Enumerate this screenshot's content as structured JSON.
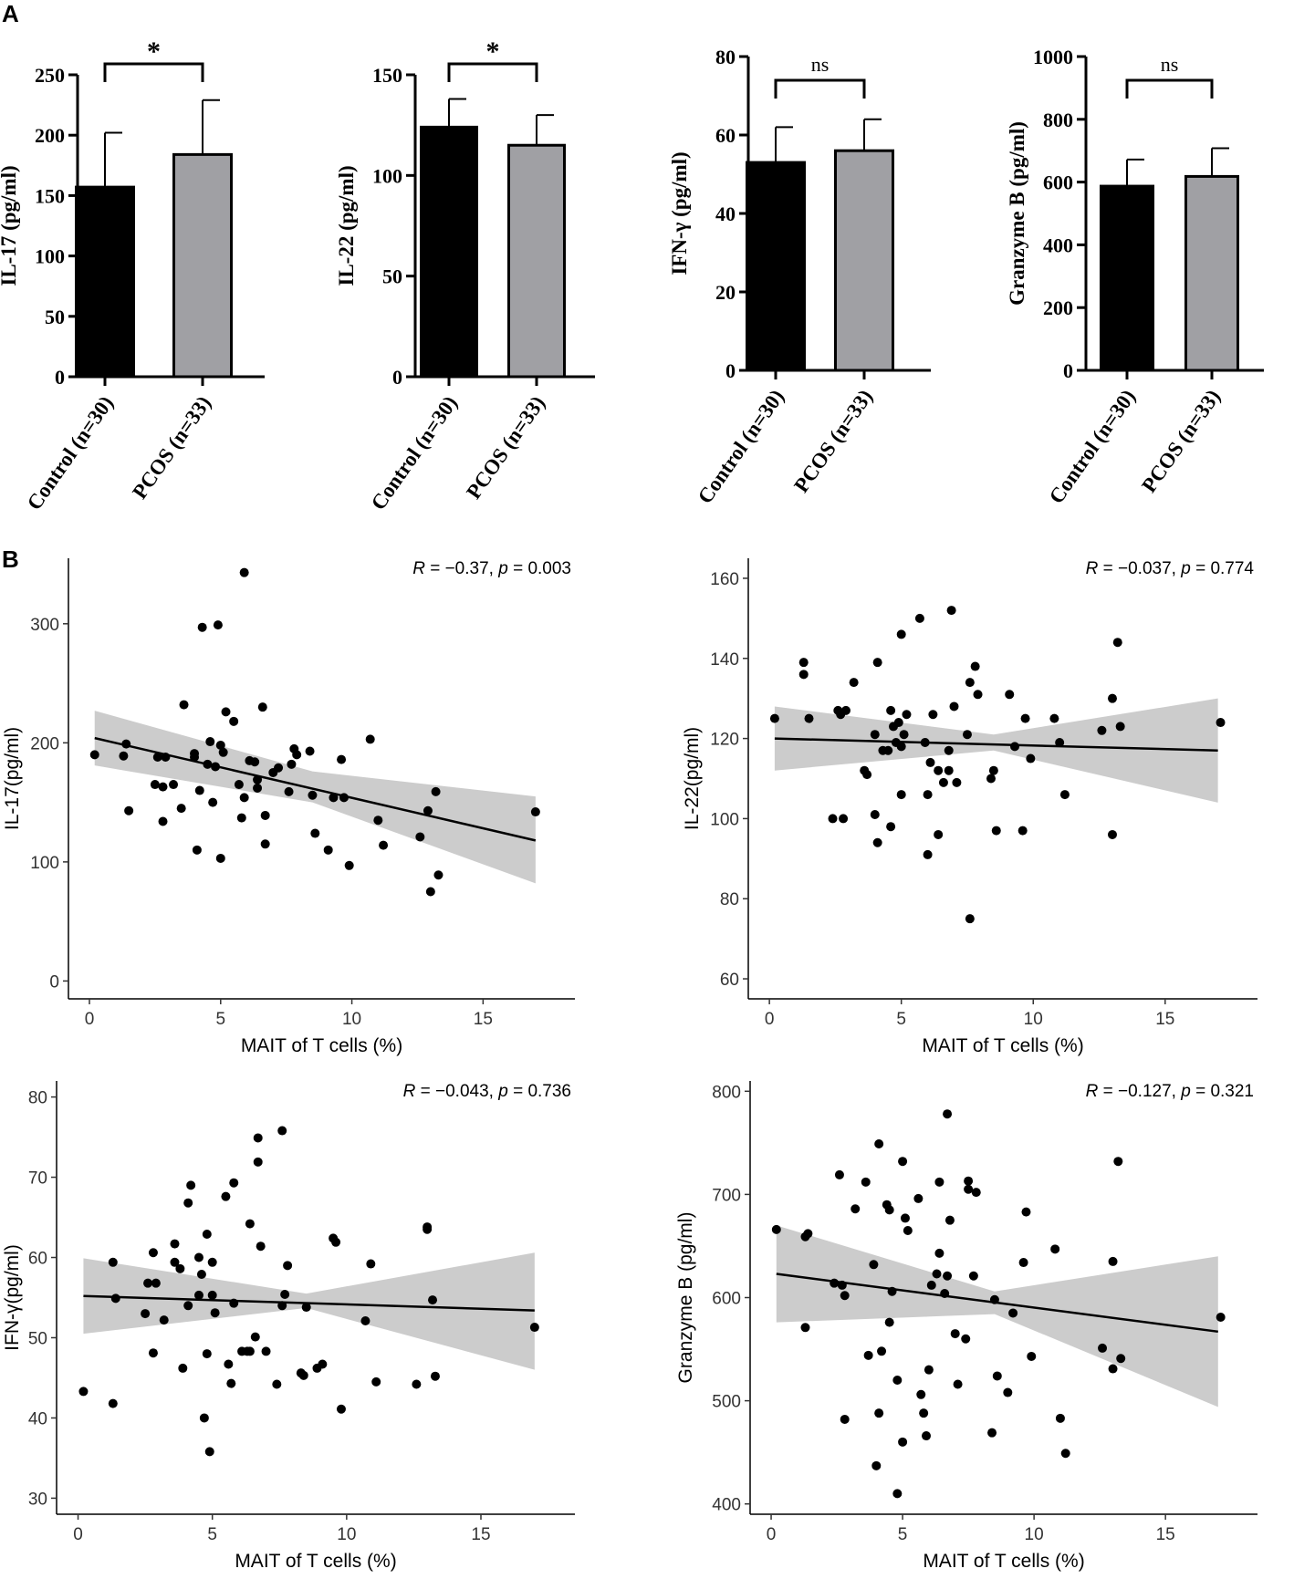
{
  "panels": {
    "a": "A",
    "b": "B"
  },
  "colors": {
    "control": "#000000",
    "pcos": "#a0a0a4",
    "band": "#cccccc",
    "point": "#000000"
  },
  "chart_data": [
    {
      "type": "bar",
      "panel": "A",
      "ylabel": "IL-17 (pg/ml)",
      "categories": [
        "Control (n=30)",
        "PCOS (n=33)"
      ],
      "values": [
        157,
        184
      ],
      "errors": [
        45,
        45
      ],
      "ylim": [
        0,
        250
      ],
      "yticks": [
        "0",
        "50",
        "100",
        "150",
        "200",
        "250"
      ],
      "significance": "*"
    },
    {
      "type": "bar",
      "panel": "A",
      "ylabel": "IL-22 (pg/ml)",
      "categories": [
        "Control (n=30)",
        "PCOS (n=33)"
      ],
      "values": [
        124,
        115
      ],
      "errors": [
        14,
        15
      ],
      "ylim": [
        0,
        150
      ],
      "yticks": [
        "0",
        "50",
        "100",
        "150"
      ],
      "significance": "*"
    },
    {
      "type": "bar",
      "panel": "A",
      "ylabel": "IFN-γ (pg/ml)",
      "categories": [
        "Control (n=30)",
        "PCOS (n=33)"
      ],
      "values": [
        53,
        56
      ],
      "errors": [
        9,
        8
      ],
      "ylim": [
        0,
        80
      ],
      "yticks": [
        "0",
        "20",
        "40",
        "60",
        "80"
      ],
      "significance": "ns"
    },
    {
      "type": "bar",
      "panel": "A",
      "ylabel": "Granzyme B (pg/ml)",
      "categories": [
        "Control (n=30)",
        "PCOS (n=33)"
      ],
      "values": [
        587,
        618
      ],
      "errors": [
        85,
        90
      ],
      "ylim": [
        0,
        1000
      ],
      "yticks": [
        "0",
        "200",
        "400",
        "600",
        "800",
        "1000"
      ],
      "significance": "ns"
    },
    {
      "type": "scatter",
      "panel": "B",
      "xlabel": "MAIT of T cells (%)",
      "ylabel": "IL-17(pg/ml)",
      "r_text": "R",
      "stat_text": " = −0.37, ",
      "p_text": "p",
      "pval_text": " = 0.003",
      "xlim": [
        -0.8,
        18.5
      ],
      "ylim": [
        -15,
        355
      ],
      "xticks": [
        "0",
        "5",
        "10",
        "15"
      ],
      "yticks": [
        "0",
        "100",
        "200",
        "300"
      ],
      "fit": {
        "x": [
          0.2,
          17.0
        ],
        "y": [
          204,
          118
        ]
      },
      "band": {
        "x": [
          0.2,
          8.5,
          17.0
        ],
        "upper": [
          227,
          176,
          155
        ],
        "lower": [
          181,
          150,
          82
        ]
      },
      "points": [
        [
          0.2,
          190
        ],
        [
          1.3,
          189
        ],
        [
          1.4,
          199
        ],
        [
          1.5,
          143
        ],
        [
          2.5,
          165
        ],
        [
          2.6,
          188
        ],
        [
          2.8,
          163
        ],
        [
          2.8,
          134
        ],
        [
          2.9,
          188
        ],
        [
          3.2,
          165
        ],
        [
          3.5,
          145
        ],
        [
          3.6,
          232
        ],
        [
          4.0,
          188
        ],
        [
          4.0,
          191
        ],
        [
          4.1,
          110
        ],
        [
          4.2,
          160
        ],
        [
          4.3,
          297
        ],
        [
          4.5,
          182
        ],
        [
          4.6,
          201
        ],
        [
          4.7,
          150
        ],
        [
          4.8,
          180
        ],
        [
          4.9,
          299
        ],
        [
          5.0,
          103
        ],
        [
          5.0,
          198
        ],
        [
          5.1,
          192
        ],
        [
          5.2,
          226
        ],
        [
          5.5,
          218
        ],
        [
          5.7,
          165
        ],
        [
          5.8,
          137
        ],
        [
          5.9,
          343
        ],
        [
          5.9,
          154
        ],
        [
          6.1,
          185
        ],
        [
          6.3,
          184
        ],
        [
          6.4,
          162
        ],
        [
          6.4,
          169
        ],
        [
          6.6,
          230
        ],
        [
          6.7,
          139
        ],
        [
          6.7,
          115
        ],
        [
          7.0,
          175
        ],
        [
          7.2,
          179
        ],
        [
          7.6,
          159
        ],
        [
          7.7,
          182
        ],
        [
          7.8,
          195
        ],
        [
          7.9,
          190
        ],
        [
          8.4,
          193
        ],
        [
          8.5,
          156
        ],
        [
          8.6,
          124
        ],
        [
          9.1,
          110
        ],
        [
          9.3,
          154
        ],
        [
          9.6,
          186
        ],
        [
          9.7,
          154
        ],
        [
          9.9,
          97
        ],
        [
          10.7,
          203
        ],
        [
          11.0,
          135
        ],
        [
          11.2,
          114
        ],
        [
          12.6,
          121
        ],
        [
          12.9,
          143
        ],
        [
          13.0,
          75
        ],
        [
          13.2,
          159
        ],
        [
          13.3,
          89
        ],
        [
          17.0,
          142
        ]
      ]
    },
    {
      "type": "scatter",
      "panel": "B",
      "xlabel": "MAIT of T cells (%)",
      "ylabel": "IL-22(pg/ml)",
      "r_text": "R",
      "stat_text": " = −0.037, ",
      "p_text": "p",
      "pval_text": " = 0.774",
      "xlim": [
        -0.8,
        18.5
      ],
      "ylim": [
        55,
        165
      ],
      "xticks": [
        "0",
        "5",
        "10",
        "15"
      ],
      "yticks": [
        "60",
        "80",
        "100",
        "120",
        "140",
        "160"
      ],
      "fit": {
        "x": [
          0.2,
          17.0
        ],
        "y": [
          120,
          117
        ]
      },
      "band": {
        "x": [
          0.2,
          8.5,
          17.0
        ],
        "upper": [
          128,
          121,
          130
        ],
        "lower": [
          112,
          117,
          104
        ]
      },
      "points": [
        [
          0.2,
          125
        ],
        [
          1.3,
          139
        ],
        [
          1.3,
          136
        ],
        [
          1.5,
          125
        ],
        [
          2.4,
          100
        ],
        [
          2.6,
          127
        ],
        [
          2.7,
          126
        ],
        [
          2.8,
          100
        ],
        [
          2.9,
          127
        ],
        [
          3.2,
          134
        ],
        [
          3.6,
          112
        ],
        [
          3.7,
          111
        ],
        [
          4.0,
          101
        ],
        [
          4.0,
          121
        ],
        [
          4.1,
          139
        ],
        [
          4.1,
          94
        ],
        [
          4.3,
          117
        ],
        [
          4.5,
          117
        ],
        [
          4.6,
          127
        ],
        [
          4.6,
          98
        ],
        [
          4.7,
          123
        ],
        [
          4.8,
          119
        ],
        [
          4.9,
          124
        ],
        [
          5.0,
          106
        ],
        [
          5.0,
          118
        ],
        [
          5.0,
          146
        ],
        [
          5.1,
          121
        ],
        [
          5.2,
          126
        ],
        [
          5.7,
          150
        ],
        [
          5.9,
          119
        ],
        [
          6.0,
          106
        ],
        [
          6.0,
          91
        ],
        [
          6.1,
          114
        ],
        [
          6.2,
          126
        ],
        [
          6.4,
          96
        ],
        [
          6.4,
          112
        ],
        [
          6.6,
          109
        ],
        [
          6.8,
          117
        ],
        [
          6.8,
          112
        ],
        [
          6.9,
          152
        ],
        [
          7.0,
          128
        ],
        [
          7.1,
          109
        ],
        [
          7.5,
          121
        ],
        [
          7.6,
          134
        ],
        [
          7.6,
          75
        ],
        [
          7.8,
          138
        ],
        [
          7.9,
          131
        ],
        [
          8.4,
          110
        ],
        [
          8.5,
          112
        ],
        [
          8.6,
          97
        ],
        [
          9.1,
          131
        ],
        [
          9.3,
          118
        ],
        [
          9.6,
          97
        ],
        [
          9.7,
          125
        ],
        [
          9.9,
          115
        ],
        [
          10.8,
          125
        ],
        [
          11.0,
          119
        ],
        [
          11.2,
          106
        ],
        [
          12.6,
          122
        ],
        [
          13.0,
          130
        ],
        [
          13.0,
          96
        ],
        [
          13.2,
          144
        ],
        [
          13.3,
          123
        ],
        [
          17.1,
          124
        ]
      ]
    },
    {
      "type": "scatter",
      "panel": "B",
      "xlabel": "MAIT of T cells (%)",
      "ylabel": "IFN-γ(pg/ml)",
      "r_text": "R",
      "stat_text": " = −0.043, ",
      "p_text": "p",
      "pval_text": " = 0.736",
      "xlim": [
        -0.8,
        18.5
      ],
      "ylim": [
        28,
        82
      ],
      "xticks": [
        "0",
        "5",
        "10",
        "15"
      ],
      "yticks": [
        "30",
        "40",
        "50",
        "60",
        "70",
        "80"
      ],
      "fit": {
        "x": [
          0.2,
          17.0
        ],
        "y": [
          55.2,
          53.4
        ]
      },
      "band": {
        "x": [
          0.2,
          8.5,
          17.0
        ],
        "upper": [
          59.9,
          55.5,
          60.6
        ],
        "lower": [
          50.5,
          53.7,
          46.0
        ]
      },
      "points": [
        [
          0.2,
          43.3
        ],
        [
          1.3,
          59.4
        ],
        [
          1.3,
          41.8
        ],
        [
          1.4,
          54.9
        ],
        [
          2.5,
          53.0
        ],
        [
          2.6,
          56.8
        ],
        [
          2.8,
          60.6
        ],
        [
          2.8,
          48.1
        ],
        [
          2.9,
          56.8
        ],
        [
          3.2,
          52.2
        ],
        [
          3.6,
          61.7
        ],
        [
          3.6,
          59.4
        ],
        [
          3.8,
          58.6
        ],
        [
          3.9,
          46.2
        ],
        [
          4.1,
          54.0
        ],
        [
          4.1,
          66.8
        ],
        [
          4.2,
          69.0
        ],
        [
          4.5,
          60.0
        ],
        [
          4.5,
          55.3
        ],
        [
          4.6,
          57.9
        ],
        [
          4.7,
          40.0
        ],
        [
          4.8,
          62.9
        ],
        [
          4.8,
          48.0
        ],
        [
          4.9,
          35.8
        ],
        [
          5.0,
          55.3
        ],
        [
          5.0,
          59.4
        ],
        [
          5.1,
          53.1
        ],
        [
          5.5,
          67.6
        ],
        [
          5.6,
          46.7
        ],
        [
          5.7,
          44.3
        ],
        [
          5.8,
          69.3
        ],
        [
          5.8,
          54.3
        ],
        [
          6.1,
          48.3
        ],
        [
          6.3,
          48.3
        ],
        [
          6.4,
          48.3
        ],
        [
          6.4,
          64.2
        ],
        [
          6.6,
          50.1
        ],
        [
          6.7,
          71.9
        ],
        [
          6.7,
          74.9
        ],
        [
          6.8,
          61.4
        ],
        [
          7.0,
          48.3
        ],
        [
          7.4,
          44.2
        ],
        [
          7.6,
          75.8
        ],
        [
          7.6,
          54.0
        ],
        [
          7.7,
          55.4
        ],
        [
          7.8,
          59.0
        ],
        [
          8.3,
          45.6
        ],
        [
          8.4,
          45.3
        ],
        [
          8.5,
          53.8
        ],
        [
          8.9,
          46.2
        ],
        [
          9.1,
          46.7
        ],
        [
          9.5,
          62.4
        ],
        [
          9.6,
          61.9
        ],
        [
          9.8,
          41.1
        ],
        [
          10.7,
          52.1
        ],
        [
          10.9,
          59.2
        ],
        [
          11.1,
          44.5
        ],
        [
          12.6,
          44.2
        ],
        [
          13.0,
          63.8
        ],
        [
          13.0,
          63.5
        ],
        [
          13.2,
          54.7
        ],
        [
          13.3,
          45.2
        ],
        [
          17.0,
          51.3
        ]
      ]
    },
    {
      "type": "scatter",
      "panel": "B",
      "xlabel": "MAIT of T cells (%)",
      "ylabel": "Granzyme B (pg/ml)",
      "r_text": "R",
      "stat_text": " = −0.127, ",
      "p_text": "p",
      "pval_text": " = 0.321",
      "xlim": [
        -0.8,
        18.5
      ],
      "ylim": [
        390,
        810
      ],
      "xticks": [
        "0",
        "5",
        "10",
        "15"
      ],
      "yticks": [
        "400",
        "500",
        "600",
        "700",
        "800"
      ],
      "fit": {
        "x": [
          0.2,
          17.0
        ],
        "y": [
          623,
          567
        ]
      },
      "band": {
        "x": [
          0.2,
          8.5,
          17.0
        ],
        "upper": [
          670,
          606,
          640
        ],
        "lower": [
          576,
          584,
          494
        ]
      },
      "points": [
        [
          0.2,
          666
        ],
        [
          1.3,
          659
        ],
        [
          1.3,
          571
        ],
        [
          1.4,
          662
        ],
        [
          2.4,
          614
        ],
        [
          2.6,
          719
        ],
        [
          2.7,
          612
        ],
        [
          2.8,
          602
        ],
        [
          2.8,
          482
        ],
        [
          3.2,
          686
        ],
        [
          3.6,
          712
        ],
        [
          3.7,
          544
        ],
        [
          3.9,
          632
        ],
        [
          4.0,
          437
        ],
        [
          4.1,
          488
        ],
        [
          4.1,
          749
        ],
        [
          4.2,
          548
        ],
        [
          4.4,
          690
        ],
        [
          4.5,
          685
        ],
        [
          4.5,
          576
        ],
        [
          4.6,
          606
        ],
        [
          4.8,
          410
        ],
        [
          4.8,
          520
        ],
        [
          5.0,
          460
        ],
        [
          5.0,
          732
        ],
        [
          5.1,
          677
        ],
        [
          5.2,
          665
        ],
        [
          5.6,
          696
        ],
        [
          5.7,
          506
        ],
        [
          5.8,
          488
        ],
        [
          5.9,
          466
        ],
        [
          6.0,
          530
        ],
        [
          6.1,
          612
        ],
        [
          6.3,
          623
        ],
        [
          6.4,
          643
        ],
        [
          6.4,
          712
        ],
        [
          6.6,
          604
        ],
        [
          6.7,
          621
        ],
        [
          6.7,
          778
        ],
        [
          6.8,
          675
        ],
        [
          7.0,
          565
        ],
        [
          7.1,
          516
        ],
        [
          7.4,
          560
        ],
        [
          7.5,
          705
        ],
        [
          7.5,
          713
        ],
        [
          7.7,
          621
        ],
        [
          7.8,
          702
        ],
        [
          8.4,
          469
        ],
        [
          8.5,
          598
        ],
        [
          8.6,
          524
        ],
        [
          9.0,
          508
        ],
        [
          9.2,
          585
        ],
        [
          9.6,
          634
        ],
        [
          9.7,
          683
        ],
        [
          9.9,
          543
        ],
        [
          10.8,
          647
        ],
        [
          11.0,
          483
        ],
        [
          11.2,
          449
        ],
        [
          12.6,
          551
        ],
        [
          13.0,
          531
        ],
        [
          13.0,
          635
        ],
        [
          13.2,
          732
        ],
        [
          13.3,
          541
        ],
        [
          17.1,
          581
        ]
      ]
    }
  ]
}
